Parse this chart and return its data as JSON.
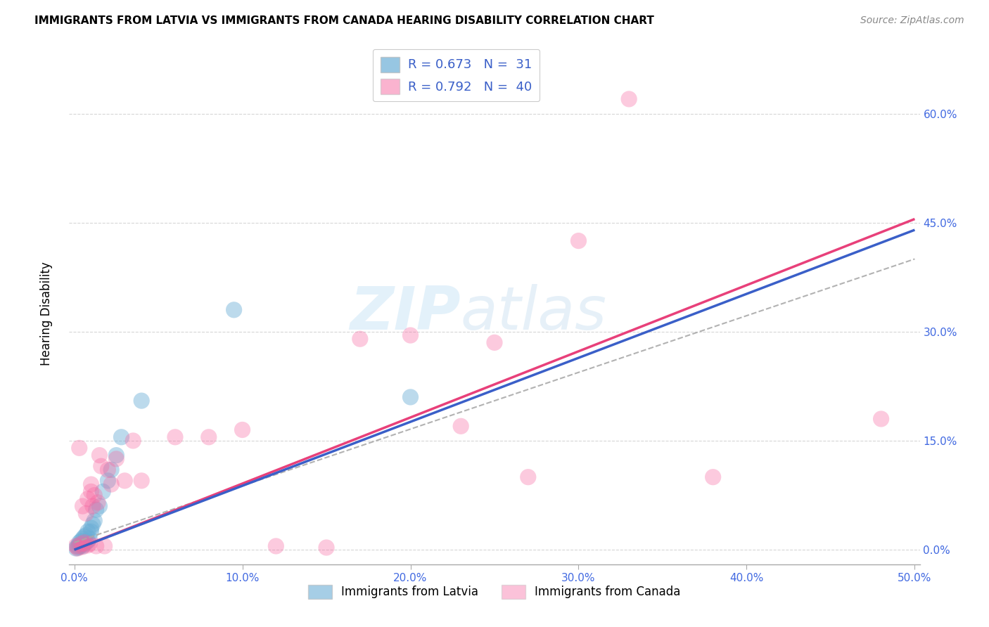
{
  "title": "IMMIGRANTS FROM LATVIA VS IMMIGRANTS FROM CANADA HEARING DISABILITY CORRELATION CHART",
  "source": "Source: ZipAtlas.com",
  "xlabel_ticks": [
    "0.0%",
    "10.0%",
    "20.0%",
    "30.0%",
    "40.0%",
    "50.0%"
  ],
  "ylabel_ticks": [
    "0.0%",
    "15.0%",
    "30.0%",
    "45.0%",
    "60.0%"
  ],
  "xlabel_vals": [
    0.0,
    0.1,
    0.2,
    0.3,
    0.4,
    0.5
  ],
  "ylabel_vals": [
    0.0,
    0.15,
    0.3,
    0.45,
    0.6
  ],
  "xlim": [
    -0.003,
    0.503
  ],
  "ylim": [
    -0.02,
    0.67
  ],
  "ylabel": "Hearing Disability",
  "legend_label1": "Immigrants from Latvia",
  "legend_label2": "Immigrants from Canada",
  "R1": 0.673,
  "N1": 31,
  "R2": 0.792,
  "N2": 40,
  "color1": "#6baed6",
  "color2": "#f768a1",
  "watermark": "ZIPatlas",
  "latvia_x": [
    0.001,
    0.002,
    0.002,
    0.003,
    0.003,
    0.003,
    0.004,
    0.004,
    0.005,
    0.005,
    0.006,
    0.006,
    0.007,
    0.007,
    0.008,
    0.008,
    0.009,
    0.01,
    0.01,
    0.011,
    0.012,
    0.013,
    0.015,
    0.017,
    0.02,
    0.022,
    0.025,
    0.028,
    0.04,
    0.095,
    0.2
  ],
  "latvia_y": [
    0.002,
    0.003,
    0.005,
    0.004,
    0.007,
    0.01,
    0.006,
    0.012,
    0.005,
    0.015,
    0.008,
    0.018,
    0.01,
    0.02,
    0.012,
    0.025,
    0.015,
    0.025,
    0.03,
    0.035,
    0.04,
    0.055,
    0.06,
    0.08,
    0.095,
    0.11,
    0.13,
    0.155,
    0.205,
    0.33,
    0.21
  ],
  "canada_x": [
    0.001,
    0.002,
    0.003,
    0.004,
    0.005,
    0.005,
    0.006,
    0.007,
    0.008,
    0.008,
    0.009,
    0.01,
    0.01,
    0.011,
    0.012,
    0.013,
    0.014,
    0.015,
    0.016,
    0.018,
    0.02,
    0.022,
    0.025,
    0.03,
    0.035,
    0.04,
    0.06,
    0.08,
    0.1,
    0.12,
    0.15,
    0.17,
    0.2,
    0.23,
    0.25,
    0.27,
    0.3,
    0.33,
    0.38,
    0.48
  ],
  "canada_y": [
    0.005,
    0.002,
    0.14,
    0.008,
    0.004,
    0.06,
    0.01,
    0.05,
    0.006,
    0.07,
    0.008,
    0.08,
    0.09,
    0.06,
    0.075,
    0.005,
    0.065,
    0.13,
    0.115,
    0.005,
    0.11,
    0.09,
    0.125,
    0.095,
    0.15,
    0.095,
    0.155,
    0.155,
    0.165,
    0.005,
    0.003,
    0.29,
    0.295,
    0.17,
    0.285,
    0.1,
    0.425,
    0.62,
    0.1,
    0.18
  ],
  "blue_line": [
    0.0,
    0.0,
    0.5,
    0.44
  ],
  "pink_line": [
    0.0,
    0.0,
    0.5,
    0.455
  ],
  "dash_line": [
    0.0,
    0.01,
    0.5,
    0.4
  ]
}
